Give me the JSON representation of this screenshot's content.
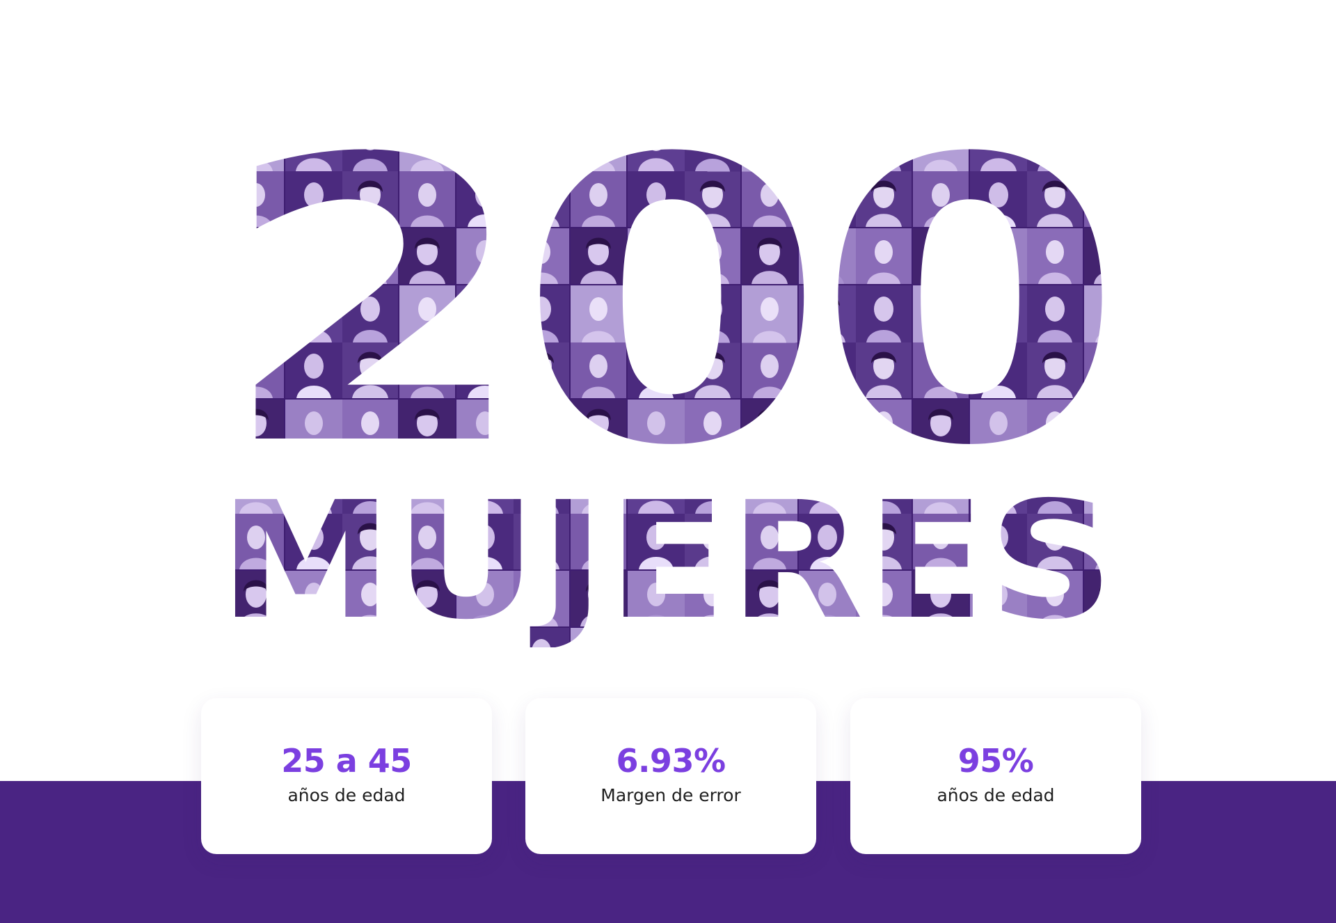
{
  "hero": {
    "number": "200",
    "word": "MUJERES"
  },
  "stats": [
    {
      "value": "25 a 45",
      "label": "años de edad"
    },
    {
      "value": "6.93%",
      "label": "Margen de error"
    },
    {
      "value": "95%",
      "label": "años de edad"
    }
  ],
  "colors": {
    "accent": "#7b3fe0",
    "band": "#4a2483",
    "text_dark": "#1f1f1f",
    "collage_base": "#3e1d70",
    "collage_mid": "#6a4a9c",
    "collage_light": "#c9b8e6"
  }
}
